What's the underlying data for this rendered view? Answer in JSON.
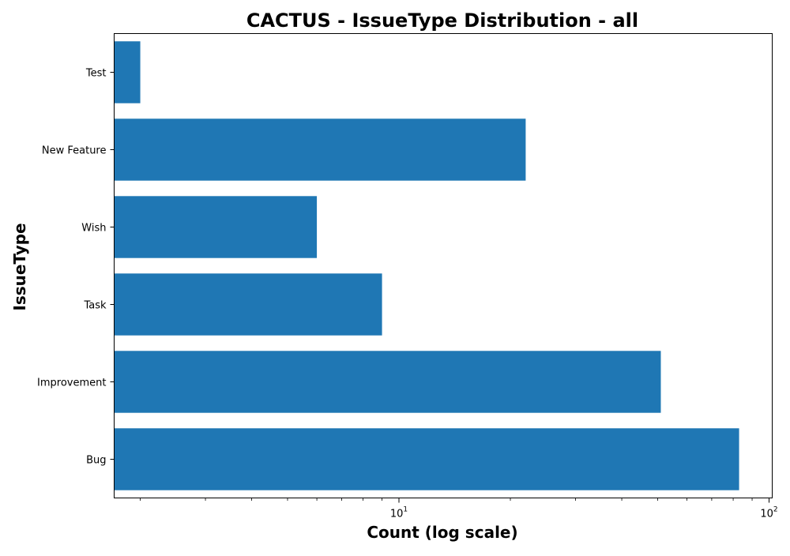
{
  "chart_data": {
    "type": "bar",
    "orientation": "horizontal",
    "title": "CACTUS - IssueType Distribution - all",
    "xlabel": "Count (log scale)",
    "ylabel": "IssueType",
    "x_scale": "log",
    "xlim": [
      1.7,
      102
    ],
    "x_tick_labels": [
      {
        "base": "10",
        "exp": "1",
        "value": 10
      },
      {
        "base": "10",
        "exp": "2",
        "value": 100
      }
    ],
    "categories": [
      "Bug",
      "Improvement",
      "Task",
      "Wish",
      "New Feature",
      "Test"
    ],
    "values": [
      83,
      51,
      9,
      6,
      22,
      2
    ],
    "bar_color": "#1f77b4",
    "grid": false,
    "legend": "none"
  }
}
